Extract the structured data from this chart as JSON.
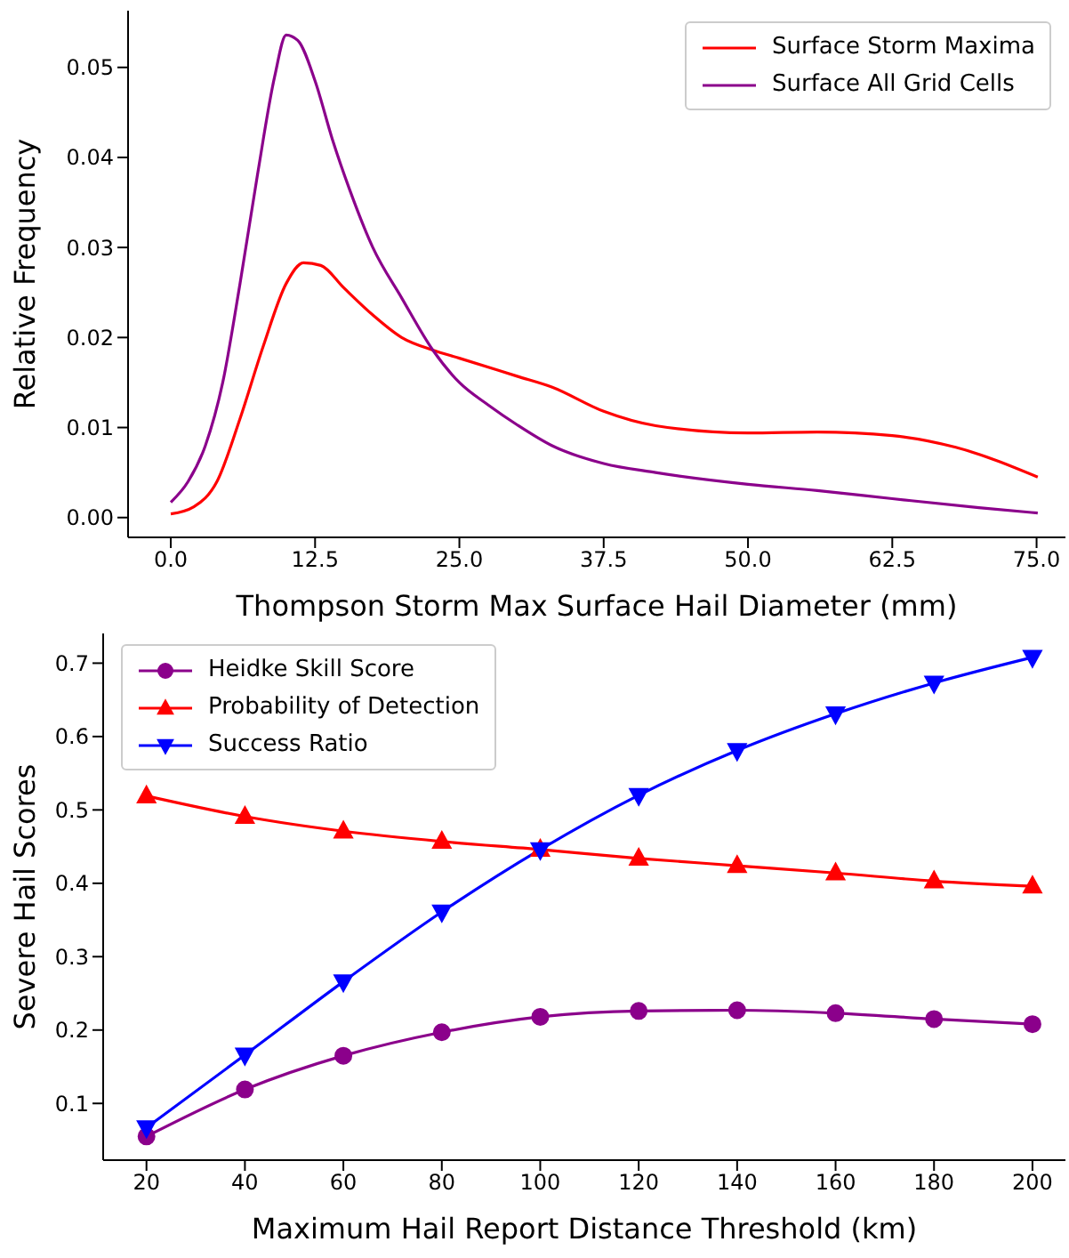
{
  "chart_data": [
    {
      "type": "line",
      "xlabel": "Thompson Storm Max Surface Hail Diameter (mm)",
      "ylabel": "Relative Frequency",
      "xlim": [
        -3.7,
        77.5
      ],
      "ylim": [
        -0.0022,
        0.0563
      ],
      "xticks": [
        {
          "value": 0,
          "label": "0.0"
        },
        {
          "value": 12.5,
          "label": "12.5"
        },
        {
          "value": 25,
          "label": "25.0"
        },
        {
          "value": 37.5,
          "label": "37.5"
        },
        {
          "value": 50,
          "label": "50.0"
        },
        {
          "value": 62.5,
          "label": "62.5"
        },
        {
          "value": 75,
          "label": "75.0"
        }
      ],
      "yticks": [
        {
          "value": 0,
          "label": "0.00"
        },
        {
          "value": 0.01,
          "label": "0.01"
        },
        {
          "value": 0.02,
          "label": "0.02"
        },
        {
          "value": 0.03,
          "label": "0.03"
        },
        {
          "value": 0.04,
          "label": "0.04"
        },
        {
          "value": 0.05,
          "label": "0.05"
        }
      ],
      "grid": false,
      "legend": "top right",
      "marker": "none",
      "line_style": "solid",
      "series": [
        {
          "name": "Surface Storm Maxima",
          "color": "#ff0000",
          "x": [
            0,
            2,
            4,
            6,
            8,
            10,
            11.5,
            13,
            15,
            17.5,
            20,
            22.7,
            25,
            30,
            33,
            37.5,
            42,
            50,
            56,
            62.5,
            68,
            75.1
          ],
          "values": [
            0.0004,
            0.0012,
            0.004,
            0.011,
            0.019,
            0.026,
            0.0283,
            0.028,
            0.0255,
            0.0225,
            0.02,
            0.0186,
            0.0177,
            0.0157,
            0.0145,
            0.0118,
            0.0102,
            0.0094,
            0.0095,
            0.0091,
            0.0078,
            0.0045
          ]
        },
        {
          "name": "Surface All Grid Cells",
          "color": "#8b008b",
          "x": [
            0,
            1.5,
            3,
            4.5,
            6,
            7.5,
            9,
            10,
            11,
            12.5,
            14,
            15.5,
            17.5,
            20,
            22.7,
            25,
            27.5,
            30,
            33,
            37.5,
            42,
            50,
            56,
            62.5,
            70,
            75.1
          ],
          "values": [
            0.0017,
            0.004,
            0.008,
            0.015,
            0.026,
            0.038,
            0.049,
            0.0536,
            0.053,
            0.0485,
            0.042,
            0.0364,
            0.03,
            0.0244,
            0.0186,
            0.015,
            0.0125,
            0.0103,
            0.008,
            0.006,
            0.005,
            0.0037,
            0.003,
            0.0021,
            0.0011,
            0.0005
          ]
        }
      ]
    },
    {
      "type": "line",
      "xlabel": "Maximum Hail Report Distance Threshold (km)",
      "ylabel": "Severe Hail Scores",
      "xlim": [
        11.2,
        206.7
      ],
      "ylim": [
        0.0227,
        0.7405
      ],
      "xticks": [
        20,
        40,
        60,
        80,
        100,
        120,
        140,
        160,
        180,
        200
      ],
      "yticks": [
        0.1,
        0.2,
        0.3,
        0.4,
        0.5,
        0.6,
        0.7
      ],
      "grid": false,
      "legend": "top left",
      "line_style": "solid",
      "x": [
        20,
        40,
        60,
        80,
        100,
        120,
        140,
        160,
        180,
        200
      ],
      "series": [
        {
          "name": "Heidke Skill Score",
          "color": "#8b008b",
          "marker": "circle",
          "values": [
            0.055,
            0.119,
            0.165,
            0.197,
            0.218,
            0.226,
            0.227,
            0.223,
            0.215,
            0.208
          ]
        },
        {
          "name": "Probability of Detection",
          "color": "#ff0000",
          "marker": "triangle",
          "values": [
            0.519,
            0.491,
            0.471,
            0.457,
            0.446,
            0.434,
            0.424,
            0.414,
            0.403,
            0.396
          ]
        },
        {
          "name": "Success Ratio",
          "color": "#0000ff",
          "marker": "triangle-down",
          "values": [
            0.067,
            0.166,
            0.266,
            0.361,
            0.446,
            0.52,
            0.581,
            0.631,
            0.673,
            0.708
          ]
        }
      ]
    }
  ]
}
